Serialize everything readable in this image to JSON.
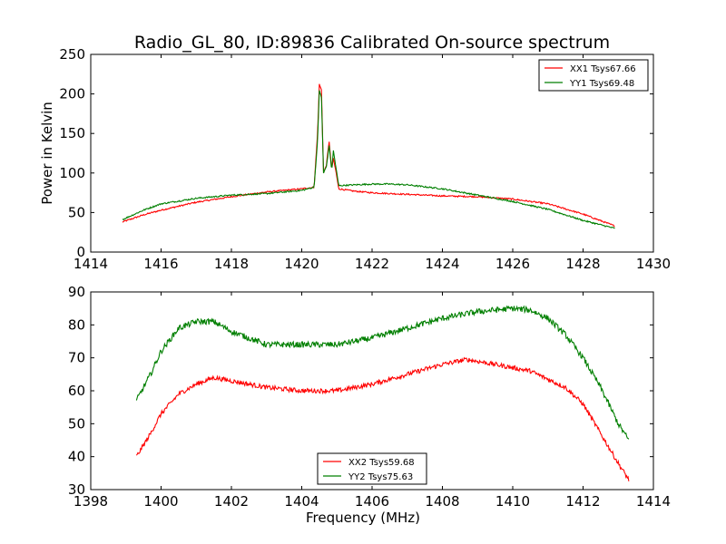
{
  "title": "Radio_GL_80, ID:89836 Calibrated On-source spectrum",
  "colors": {
    "red": "#ff0000",
    "green": "#007f00",
    "axes": "#000000",
    "background": "#ffffff"
  },
  "chart_data": [
    {
      "type": "line",
      "title": "Radio_GL_80, ID:89836 Calibrated On-source spectrum",
      "xlabel": "",
      "ylabel": "Power in Kelvin",
      "xlim": [
        1414,
        1430
      ],
      "ylim": [
        0,
        250
      ],
      "xticks": [
        1414,
        1416,
        1418,
        1420,
        1422,
        1424,
        1426,
        1428,
        1430
      ],
      "yticks": [
        0,
        50,
        100,
        150,
        200,
        250
      ],
      "grid": false,
      "legend": "top-right",
      "series": [
        {
          "name": "XX1 Tsys67.66",
          "color": "#ff0000",
          "points": [
            [
              1414.9,
              38
            ],
            [
              1415.5,
              47
            ],
            [
              1416.0,
              53
            ],
            [
              1417.0,
              63
            ],
            [
              1418.0,
              70
            ],
            [
              1419.0,
              76
            ],
            [
              1420.0,
              80
            ],
            [
              1420.35,
              82
            ],
            [
              1420.45,
              150
            ],
            [
              1420.5,
              212
            ],
            [
              1420.56,
              205
            ],
            [
              1420.62,
              100
            ],
            [
              1420.7,
              110
            ],
            [
              1420.78,
              140
            ],
            [
              1420.85,
              105
            ],
            [
              1420.9,
              118
            ],
            [
              1420.98,
              100
            ],
            [
              1421.05,
              80
            ],
            [
              1421.5,
              77
            ],
            [
              1422.0,
              75
            ],
            [
              1423.0,
              73
            ],
            [
              1424.0,
              71
            ],
            [
              1425.0,
              70
            ],
            [
              1426.0,
              67
            ],
            [
              1427.0,
              61
            ],
            [
              1428.0,
              48
            ],
            [
              1428.9,
              33
            ]
          ]
        },
        {
          "name": "YY1 Tsys69.48",
          "color": "#007f00",
          "points": [
            [
              1414.9,
              41
            ],
            [
              1415.5,
              53
            ],
            [
              1416.0,
              61
            ],
            [
              1417.0,
              68
            ],
            [
              1418.0,
              72
            ],
            [
              1419.0,
              74
            ],
            [
              1420.0,
              78
            ],
            [
              1420.35,
              82
            ],
            [
              1420.45,
              140
            ],
            [
              1420.5,
              205
            ],
            [
              1420.56,
              195
            ],
            [
              1420.62,
              100
            ],
            [
              1420.7,
              108
            ],
            [
              1420.78,
              135
            ],
            [
              1420.85,
              103
            ],
            [
              1420.9,
              128
            ],
            [
              1420.98,
              105
            ],
            [
              1421.05,
              84
            ],
            [
              1421.5,
              85
            ],
            [
              1422.0,
              86
            ],
            [
              1422.5,
              86
            ],
            [
              1423.0,
              85
            ],
            [
              1424.0,
              80
            ],
            [
              1425.0,
              72
            ],
            [
              1426.0,
              64
            ],
            [
              1427.0,
              54
            ],
            [
              1428.0,
              40
            ],
            [
              1428.9,
              30
            ]
          ]
        }
      ]
    },
    {
      "type": "line",
      "title": "",
      "xlabel": "Frequency (MHz)",
      "ylabel": "",
      "xlim": [
        1398,
        1414
      ],
      "ylim": [
        30,
        90
      ],
      "xticks": [
        1398,
        1400,
        1402,
        1404,
        1406,
        1408,
        1410,
        1412,
        1414
      ],
      "yticks": [
        30,
        40,
        50,
        60,
        70,
        80,
        90
      ],
      "grid": false,
      "legend": "bottom-center",
      "series": [
        {
          "name": "XX2 Tsys59.68",
          "color": "#ff0000",
          "points": [
            [
              1399.3,
              40
            ],
            [
              1399.7,
              47
            ],
            [
              1400.0,
              53
            ],
            [
              1400.5,
              59
            ],
            [
              1401.0,
              62
            ],
            [
              1401.5,
              64
            ],
            [
              1402.0,
              63
            ],
            [
              1403.0,
              61
            ],
            [
              1404.0,
              60
            ],
            [
              1405.0,
              60
            ],
            [
              1406.0,
              62
            ],
            [
              1407.0,
              65
            ],
            [
              1408.0,
              68
            ],
            [
              1408.7,
              69.5
            ],
            [
              1409.5,
              68
            ],
            [
              1410.5,
              66
            ],
            [
              1411.5,
              61
            ],
            [
              1412.0,
              56
            ],
            [
              1412.5,
              47
            ],
            [
              1413.0,
              38
            ],
            [
              1413.3,
              33
            ]
          ]
        },
        {
          "name": "YY2 Tsys75.63",
          "color": "#007f00",
          "points": [
            [
              1399.3,
              57
            ],
            [
              1399.7,
              65
            ],
            [
              1400.0,
              72
            ],
            [
              1400.5,
              79
            ],
            [
              1401.0,
              81
            ],
            [
              1401.5,
              81
            ],
            [
              1402.0,
              78
            ],
            [
              1403.0,
              74
            ],
            [
              1404.0,
              74
            ],
            [
              1405.0,
              74
            ],
            [
              1406.0,
              76
            ],
            [
              1407.0,
              79
            ],
            [
              1408.0,
              82
            ],
            [
              1409.0,
              84
            ],
            [
              1410.0,
              85
            ],
            [
              1410.5,
              84.5
            ],
            [
              1411.0,
              82
            ],
            [
              1411.5,
              77
            ],
            [
              1412.0,
              70
            ],
            [
              1412.5,
              61
            ],
            [
              1413.0,
              50
            ],
            [
              1413.3,
              45
            ]
          ]
        }
      ]
    }
  ]
}
